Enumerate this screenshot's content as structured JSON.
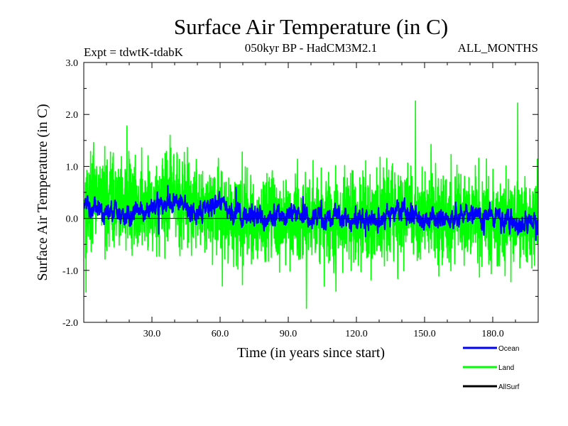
{
  "chart_data": {
    "type": "line",
    "title": "Surface Air Temperature (in C)",
    "subtitle_left": "Expt = tdwtK-tdabK",
    "subtitle_center": "050kyr BP - HadCM3M2.1",
    "subtitle_right": "ALL_MONTHS",
    "xlabel": "Time (in years since start)",
    "ylabel": "Surface Air Temperature (in C)",
    "xlim": [
      0,
      200
    ],
    "ylim": [
      -2.0,
      3.0
    ],
    "x_ticks": [
      30,
      60,
      90,
      120,
      150,
      180
    ],
    "x_tick_labels": [
      "30.0",
      "60.0",
      "90.0",
      "120.0",
      "150.0",
      "180.0"
    ],
    "y_ticks": [
      -2,
      -1,
      0,
      1,
      2,
      3
    ],
    "y_tick_labels": [
      "-2.0",
      "-1.0",
      "0.0",
      "1.0",
      "2.0",
      "3.0"
    ],
    "zero_line": true,
    "samples_per_year": 12,
    "legend": [
      {
        "name": "Ocean",
        "color": "#0000ff"
      },
      {
        "name": "Land",
        "color": "#00ff00"
      },
      {
        "name": "AllSurf",
        "color": "#000000"
      }
    ],
    "series": [
      {
        "name": "Land",
        "color": "#00ff00",
        "baseline_by_decade": [
          0.3,
          0.4,
          0.3,
          0.2,
          0.4,
          0.3,
          0.1,
          0.0,
          0.0,
          0.0,
          0.0,
          -0.05,
          0.0,
          0.0,
          0.1,
          0.1,
          0.0,
          0.0,
          0.0,
          0.0
        ],
        "noise_amplitude": 0.65,
        "extremes": [
          {
            "x": 19,
            "y": 1.78
          },
          {
            "x": 38,
            "y": 1.6
          },
          {
            "x": 98,
            "y": -1.73
          },
          {
            "x": 146,
            "y": 2.26
          },
          {
            "x": 191,
            "y": 2.22
          },
          {
            "x": 1,
            "y": -1.42
          },
          {
            "x": 61,
            "y": -1.3
          },
          {
            "x": 111,
            "y": -1.4
          },
          {
            "x": 188,
            "y": -1.22
          }
        ]
      },
      {
        "name": "Ocean",
        "color": "#0000ff",
        "baseline_by_decade": [
          0.25,
          0.15,
          0.1,
          0.2,
          0.3,
          0.1,
          0.3,
          0.05,
          0.0,
          0.05,
          0.0,
          0.0,
          0.0,
          -0.05,
          0.1,
          0.0,
          0.0,
          0.05,
          0.05,
          -0.1
        ],
        "noise_amplitude": 0.14,
        "extremes": [
          {
            "x": 37,
            "y": 0.63
          },
          {
            "x": 67,
            "y": 0.6
          },
          {
            "x": 33,
            "y": -0.3
          },
          {
            "x": 124,
            "y": -0.35
          },
          {
            "x": 199,
            "y": -0.42
          }
        ]
      },
      {
        "name": "AllSurf",
        "color": "#000000",
        "baseline_by_decade": [],
        "noise_amplitude": 0,
        "extremes": []
      }
    ]
  }
}
